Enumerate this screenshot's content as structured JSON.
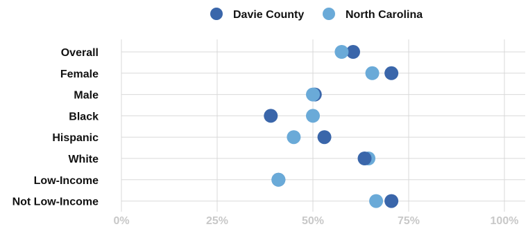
{
  "chart_data": {
    "type": "scatter",
    "title": "",
    "xlabel": "",
    "ylabel": "",
    "xlim": [
      0,
      100
    ],
    "x_ticks": [
      0,
      25,
      50,
      75,
      100
    ],
    "x_tick_labels": [
      "0%",
      "25%",
      "50%",
      "75%",
      "100%"
    ],
    "grid": true,
    "legend_position": "top-center",
    "categories": [
      "Overall",
      "Female",
      "Male",
      "Black",
      "Hispanic",
      "White",
      "Low-Income",
      "Not Low-Income"
    ],
    "series": [
      {
        "name": "Davie County",
        "color": "#3a66aa",
        "values": [
          60.5,
          70.5,
          50.5,
          39,
          53,
          63.5,
          41,
          70.5
        ]
      },
      {
        "name": "North Carolina",
        "color": "#6aaad8",
        "values": [
          57.5,
          65.5,
          50,
          50,
          45,
          64.5,
          41,
          66.5
        ]
      }
    ]
  }
}
